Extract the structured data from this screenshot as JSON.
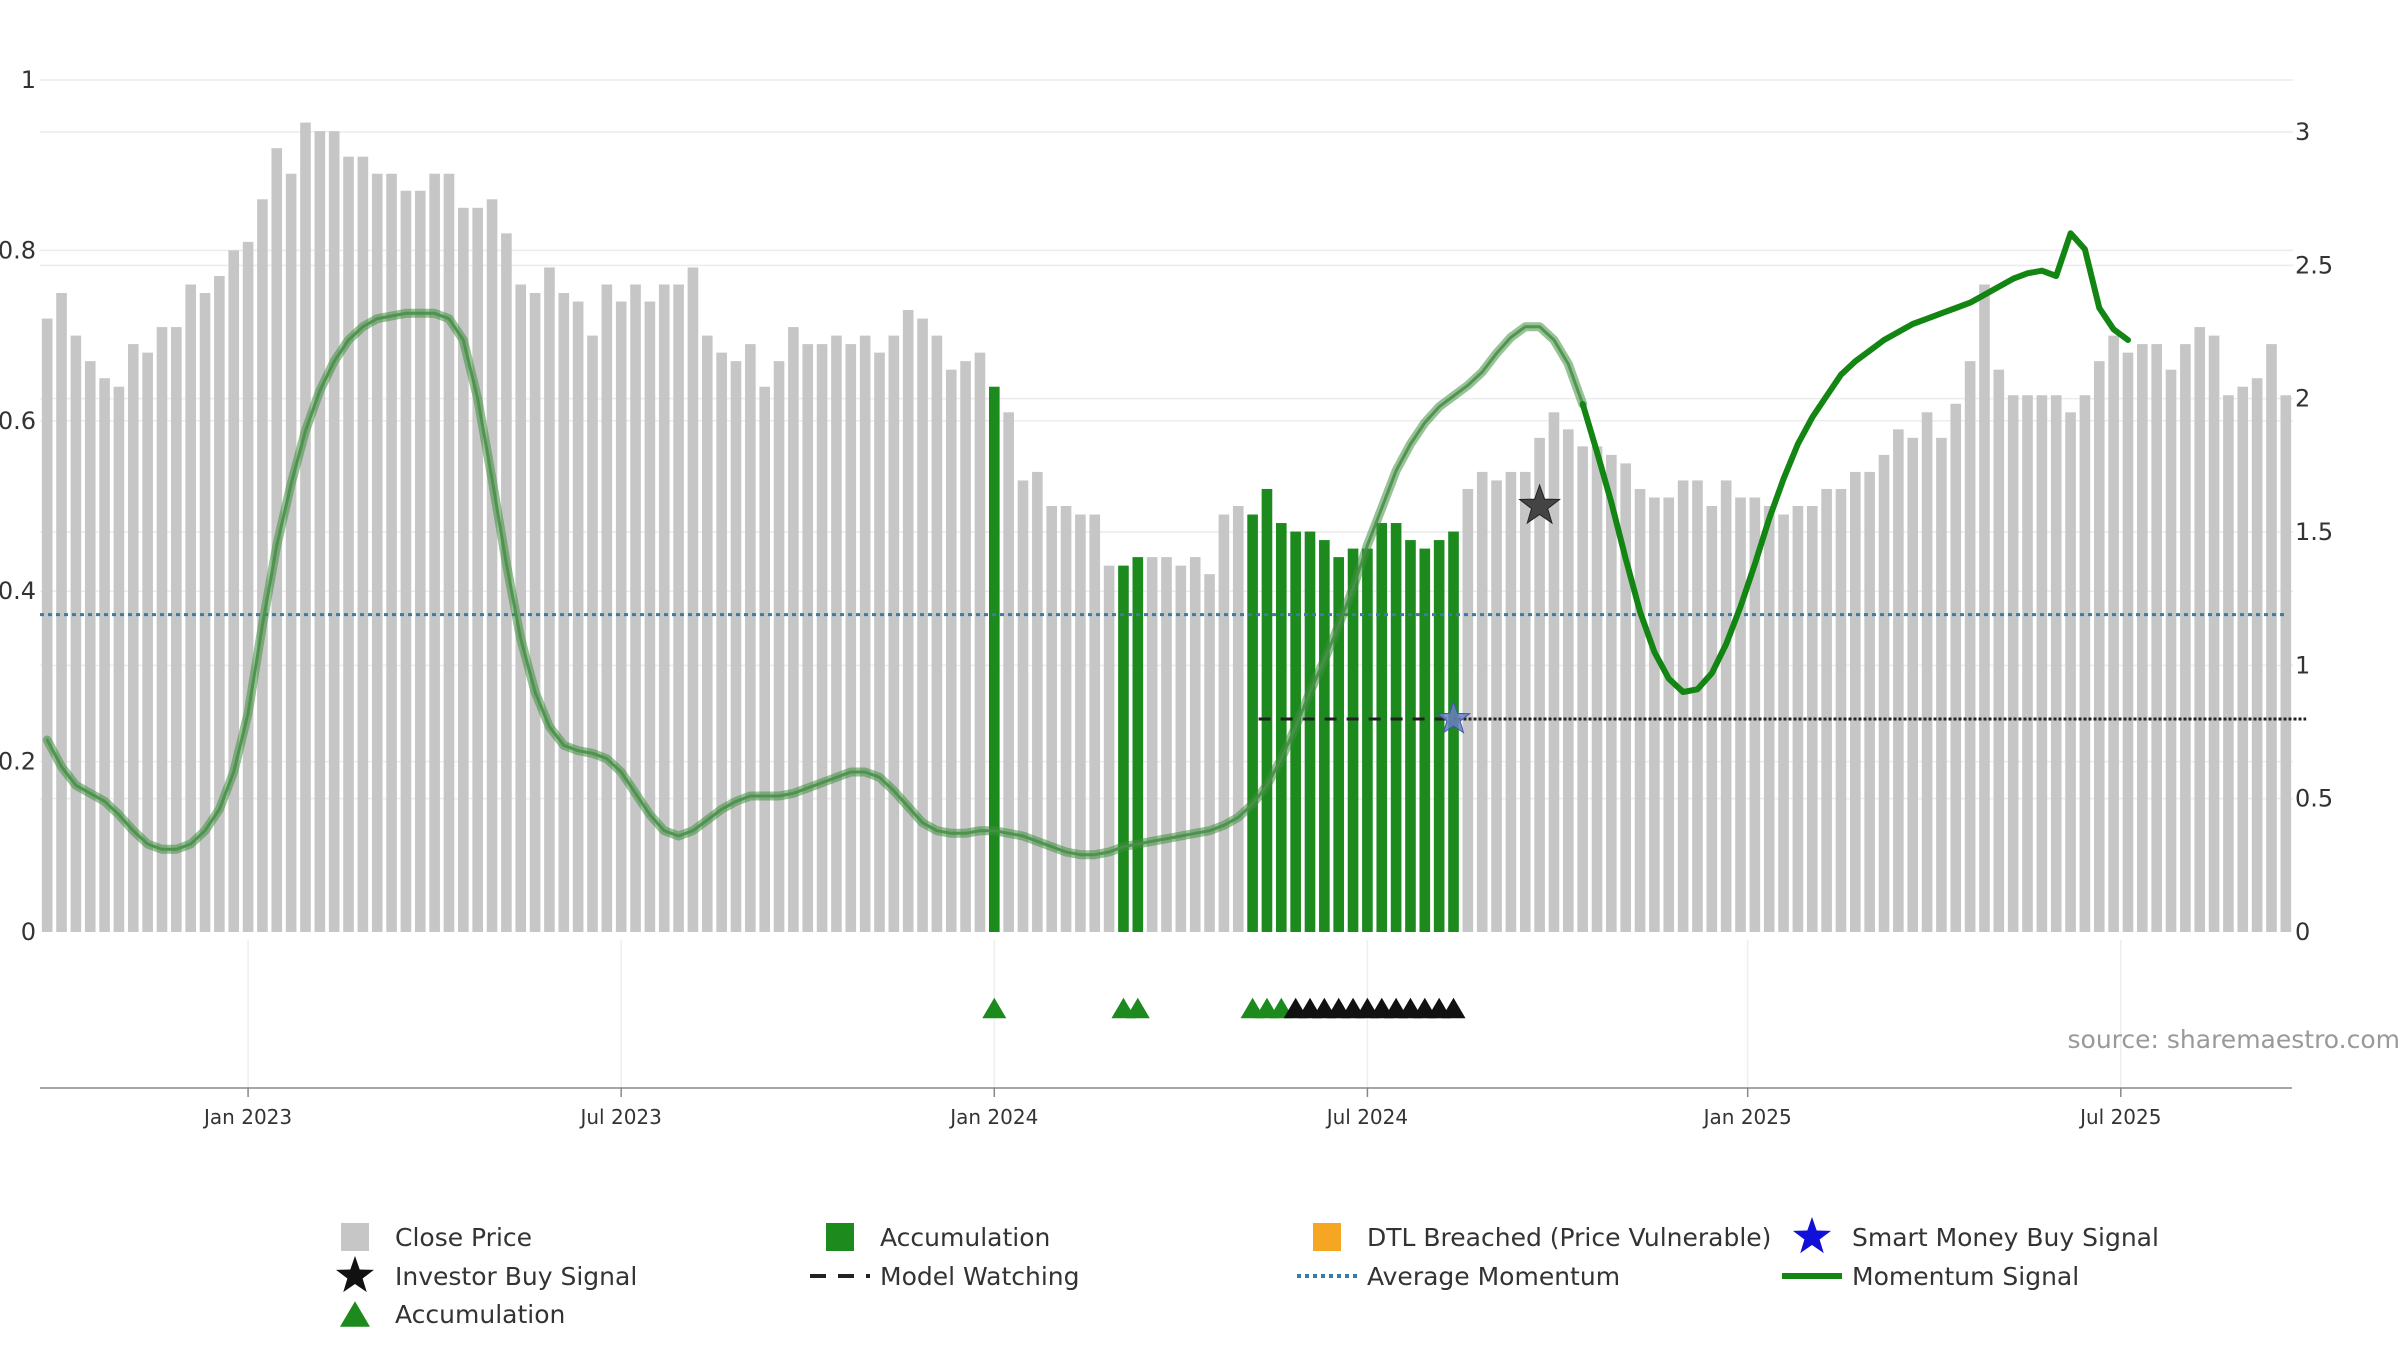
{
  "chart_data": {
    "type": "bar",
    "left_axis": {
      "ylim": [
        0,
        1
      ],
      "ticks": [
        "0",
        "0.2",
        "0.4",
        "0.6",
        "0.8",
        "1"
      ],
      "tick_values": [
        0,
        0.2,
        0.4,
        0.6,
        0.8,
        1
      ]
    },
    "right_axis": {
      "ylim": [
        0,
        3.0
      ],
      "ticks": [
        "0",
        "0.5",
        "1",
        "1.5",
        "2",
        "2.5",
        "3"
      ],
      "tick_values": [
        0,
        0.5,
        1,
        1.5,
        2,
        2.5,
        3
      ]
    },
    "x_ticks": [
      {
        "label": "Jan 2023",
        "index": 14
      },
      {
        "label": "Jul 2023",
        "index": 40
      },
      {
        "label": "Jan 2024",
        "index": 66
      },
      {
        "label": "Jul 2024",
        "index": 92
      },
      {
        "label": "Jan 2025",
        "index": 118.5
      },
      {
        "label": "Jul 2025",
        "index": 144.5
      }
    ],
    "close_price": [
      0.72,
      0.75,
      0.7,
      0.67,
      0.65,
      0.64,
      0.69,
      0.68,
      0.71,
      0.71,
      0.76,
      0.75,
      0.77,
      0.8,
      0.81,
      0.86,
      0.92,
      0.89,
      0.95,
      0.94,
      0.94,
      0.91,
      0.91,
      0.89,
      0.89,
      0.87,
      0.87,
      0.89,
      0.89,
      0.85,
      0.85,
      0.86,
      0.82,
      0.76,
      0.75,
      0.78,
      0.75,
      0.74,
      0.7,
      0.76,
      0.74,
      0.76,
      0.74,
      0.76,
      0.76,
      0.78,
      0.7,
      0.68,
      0.67,
      0.69,
      0.64,
      0.67,
      0.71,
      0.69,
      0.69,
      0.7,
      0.69,
      0.7,
      0.68,
      0.7,
      0.73,
      0.72,
      0.7,
      0.66,
      0.67,
      0.68,
      0.64,
      0.61,
      0.53,
      0.54,
      0.5,
      0.5,
      0.49,
      0.49,
      0.43,
      0.43,
      0.44,
      0.44,
      0.44,
      0.43,
      0.44,
      0.42,
      0.49,
      0.5,
      0.49,
      0.52,
      0.48,
      0.47,
      0.47,
      0.46,
      0.44,
      0.45,
      0.45,
      0.48,
      0.48,
      0.46,
      0.45,
      0.46,
      0.47,
      0.52,
      0.54,
      0.53,
      0.54,
      0.54,
      0.58,
      0.61,
      0.59,
      0.57,
      0.57,
      0.56,
      0.55,
      0.52,
      0.51,
      0.51,
      0.53,
      0.53,
      0.5,
      0.53,
      0.51,
      0.51,
      0.5,
      0.49,
      0.5,
      0.5,
      0.52,
      0.52,
      0.54,
      0.54,
      0.56,
      0.59,
      0.58,
      0.61,
      0.58,
      0.62,
      0.67,
      0.76,
      0.66,
      0.63,
      0.63,
      0.63,
      0.63,
      0.61,
      0.63,
      0.67,
      0.7,
      0.68,
      0.69,
      0.69,
      0.66,
      0.69,
      0.71,
      0.7,
      0.63,
      0.64,
      0.65,
      0.69,
      0.63
    ],
    "accumulation_bars": [
      66,
      75,
      76,
      84,
      85,
      86,
      87,
      88,
      89,
      90,
      91,
      92,
      93,
      94,
      95,
      96,
      97,
      98
    ],
    "accumulation_triangles": [
      66,
      75,
      76,
      84,
      85,
      86
    ],
    "investor_buy_triangles": [
      87,
      88,
      89,
      90,
      91,
      92,
      93,
      94,
      95,
      96,
      97,
      98
    ],
    "investor_buy_star": {
      "index": 104,
      "value": 0.5
    },
    "smart_money_star": {
      "index": 98,
      "value": 0.25
    },
    "model_watching": {
      "start": 84,
      "end": 157,
      "value": 0.25
    },
    "average_momentum": 1.19,
    "momentum_signal": {
      "values": [
        0.72,
        0.62,
        0.55,
        0.52,
        0.49,
        0.44,
        0.38,
        0.33,
        0.31,
        0.31,
        0.33,
        0.38,
        0.46,
        0.6,
        0.82,
        1.15,
        1.45,
        1.68,
        1.88,
        2.03,
        2.14,
        2.22,
        2.27,
        2.3,
        2.31,
        2.32,
        2.32,
        2.32,
        2.3,
        2.22,
        2.0,
        1.7,
        1.38,
        1.1,
        0.9,
        0.77,
        0.7,
        0.68,
        0.67,
        0.65,
        0.6,
        0.52,
        0.44,
        0.38,
        0.36,
        0.38,
        0.42,
        0.46,
        0.49,
        0.51,
        0.51,
        0.51,
        0.52,
        0.54,
        0.56,
        0.58,
        0.6,
        0.6,
        0.58,
        0.53,
        0.47,
        0.41,
        0.38,
        0.37,
        0.37,
        0.38,
        0.38,
        0.37,
        0.36,
        0.34,
        0.32,
        0.3,
        0.29,
        0.29,
        0.3,
        0.32,
        0.33,
        0.34,
        0.35,
        0.36,
        0.37,
        0.38,
        0.4,
        0.43,
        0.48,
        0.55,
        0.65,
        0.77,
        0.9,
        1.02,
        1.15,
        1.29,
        1.45,
        1.59,
        1.73,
        1.83,
        1.91,
        1.97,
        2.01,
        2.05,
        2.1,
        2.17,
        2.23,
        2.27,
        2.27,
        2.22,
        2.13,
        1.98,
        1.8,
        1.61,
        1.4,
        1.2,
        1.05,
        0.95,
        0.9,
        0.91,
        0.97,
        1.08,
        1.22,
        1.38,
        1.55,
        1.7,
        1.83,
        1.93,
        2.01,
        2.09,
        2.14,
        2.18,
        2.22,
        2.25,
        2.28,
        2.3,
        2.32,
        2.34,
        2.36,
        2.39,
        2.42,
        2.45,
        2.47,
        2.48,
        2.46,
        2.62,
        2.56,
        2.34,
        2.26,
        2.22
      ],
      "bold_from_index": 107
    },
    "legend": [
      {
        "symbol": "gray-square",
        "label": "Close Price"
      },
      {
        "symbol": "green-square",
        "label": "Accumulation"
      },
      {
        "symbol": "orange-square",
        "label": "DTL Breached (Price Vulnerable)"
      },
      {
        "symbol": "blue-star",
        "label": "Smart Money Buy Signal"
      },
      {
        "symbol": "black-star",
        "label": "Investor Buy Signal"
      },
      {
        "symbol": "black-dash",
        "label": "Model Watching"
      },
      {
        "symbol": "blue-dotted-line",
        "label": "Average Momentum"
      },
      {
        "symbol": "green-line",
        "label": "Momentum Signal"
      },
      {
        "symbol": "green-triangle",
        "label": "Accumulation"
      }
    ],
    "source": "source: sharemaestro.com"
  },
  "colors": {
    "close_price": "#c6c6c6",
    "accumulation": "#1c8a1c",
    "dtl_breached": "#f5a623",
    "smart_money": "#1010d8",
    "investor_buy": "#111111",
    "model_watching": "#222222",
    "average_momentum": "#3a7ca5",
    "momentum": "#138513",
    "grid": "#ececec",
    "axis": "#888888"
  }
}
